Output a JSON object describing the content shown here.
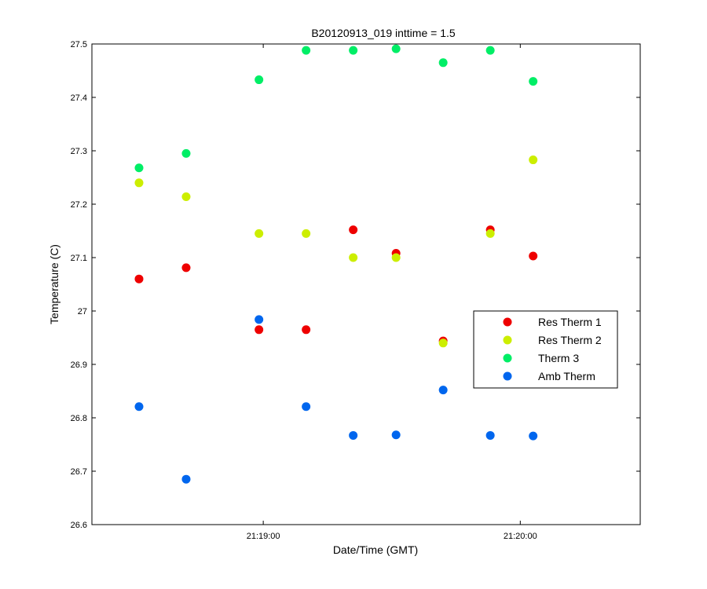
{
  "chart_data": {
    "type": "scatter",
    "title": "B20120913_019 inttime = 1.5",
    "xlabel": "Date/Time (GMT)",
    "ylabel": "Temperature (C)",
    "x_tick_labels": [
      "21:19:00",
      "21:20:00"
    ],
    "x_ticks": [
      "21:19:00",
      "21:20:00"
    ],
    "x_range": [
      "21:18:20",
      "21:20:28"
    ],
    "y_ticks": [
      26.6,
      26.7,
      26.8,
      26.9,
      27.0,
      27.1,
      27.2,
      27.3,
      27.4,
      27.5
    ],
    "y_tick_labels": [
      "26.6",
      "26.7",
      "26.8",
      "26.9",
      "27",
      "27.1",
      "27.2",
      "27.3",
      "27.4",
      "27.5"
    ],
    "ylim": [
      26.6,
      27.5
    ],
    "grid": false,
    "legend_position": "right",
    "x": [
      "21:18:31",
      "21:18:42",
      "21:18:59",
      "21:19:10",
      "21:19:21",
      "21:19:31",
      "21:19:42",
      "21:19:53",
      "21:20:03"
    ],
    "series": [
      {
        "name": "Res Therm 1",
        "color": "#ee0000",
        "values": [
          27.06,
          27.081,
          26.965,
          26.965,
          27.152,
          27.108,
          26.944,
          27.152,
          27.103
        ]
      },
      {
        "name": "Res Therm 2",
        "color": "#ccee00",
        "values": [
          27.24,
          27.214,
          27.145,
          27.145,
          27.1,
          27.1,
          26.94,
          27.145,
          27.283
        ]
      },
      {
        "name": "Therm 3",
        "color": "#00ee66",
        "values": [
          27.268,
          27.295,
          27.433,
          27.488,
          27.488,
          27.491,
          27.465,
          27.488,
          27.43
        ]
      },
      {
        "name": "Amb Therm",
        "color": "#0066ee",
        "values": [
          26.821,
          26.685,
          26.984,
          26.821,
          26.767,
          26.768,
          26.852,
          26.767,
          26.766
        ]
      }
    ]
  }
}
